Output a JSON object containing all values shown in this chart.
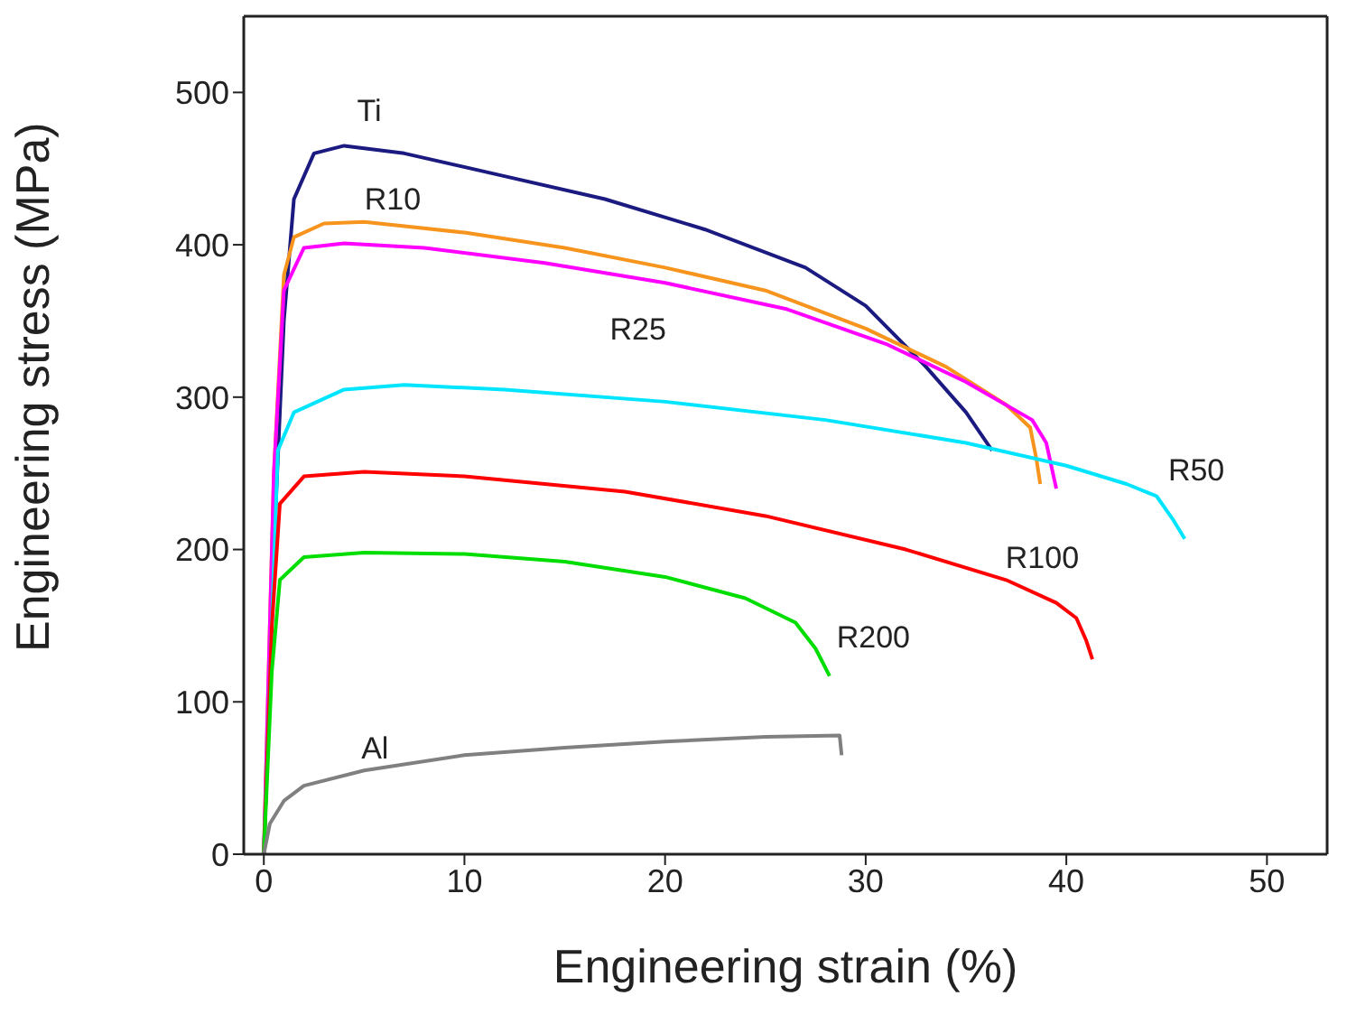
{
  "chart_data": {
    "type": "line",
    "xlabel": "Engineering strain (%)",
    "ylabel": "Engineering stress (MPa)",
    "xlim": [
      -1,
      53
    ],
    "ylim": [
      0,
      550
    ],
    "xticks": [
      0,
      10,
      20,
      30,
      40,
      50
    ],
    "yticks": [
      0,
      100,
      200,
      300,
      400,
      500
    ],
    "grid": false,
    "legend": false,
    "marker": "none",
    "line_style": "solid",
    "series": [
      {
        "name": "Ti",
        "color": "#1a1a80",
        "x": [
          0,
          0.5,
          1,
          1.5,
          2.5,
          4,
          7,
          12,
          17,
          22,
          27,
          30,
          33,
          35,
          36.3
        ],
        "values": [
          0,
          200,
          350,
          430,
          460,
          465,
          460,
          445,
          430,
          410,
          385,
          360,
          320,
          290,
          265
        ]
      },
      {
        "name": "R10",
        "color": "#f7941d",
        "x": [
          0,
          0.5,
          1,
          1.5,
          3,
          5,
          10,
          15,
          20,
          25,
          30,
          34,
          37,
          38.2,
          38.5,
          38.7
        ],
        "values": [
          0,
          250,
          380,
          405,
          414,
          415,
          408,
          398,
          385,
          370,
          345,
          320,
          295,
          280,
          260,
          243
        ]
      },
      {
        "name": "R25",
        "color": "#ff00ff",
        "x": [
          0,
          0.5,
          1,
          2,
          4,
          8,
          14,
          20,
          26,
          31,
          35,
          38.3,
          39,
          39.5
        ],
        "values": [
          0,
          250,
          370,
          398,
          401,
          398,
          388,
          375,
          358,
          335,
          310,
          285,
          270,
          240
        ]
      },
      {
        "name": "R50",
        "color": "#00e5ff",
        "x": [
          0,
          0.4,
          0.7,
          1.5,
          4,
          7,
          12,
          20,
          28,
          35,
          40,
          43,
          44.5,
          45.3,
          45.9
        ],
        "values": [
          0,
          150,
          265,
          290,
          305,
          308,
          305,
          297,
          285,
          270,
          255,
          243,
          235,
          220,
          207
        ]
      },
      {
        "name": "R100",
        "color": "#ff0000",
        "x": [
          0,
          0.4,
          0.8,
          2,
          5,
          10,
          18,
          25,
          32,
          37,
          39.5,
          40.5,
          41,
          41.3
        ],
        "values": [
          0,
          150,
          230,
          248,
          251,
          248,
          238,
          222,
          200,
          180,
          165,
          155,
          140,
          128
        ]
      },
      {
        "name": "R200",
        "color": "#00dd00",
        "x": [
          0,
          0.4,
          0.8,
          2,
          5,
          10,
          15,
          20,
          24,
          26.5,
          27.5,
          28.2
        ],
        "values": [
          0,
          120,
          180,
          195,
          198,
          197,
          192,
          182,
          168,
          152,
          135,
          117
        ]
      },
      {
        "name": "Al",
        "color": "#808080",
        "x": [
          0,
          0.3,
          1,
          2,
          5,
          10,
          15,
          20,
          25,
          28.7,
          28.8
        ],
        "values": [
          0,
          20,
          35,
          45,
          55,
          65,
          70,
          74,
          77,
          78,
          65
        ]
      }
    ]
  }
}
